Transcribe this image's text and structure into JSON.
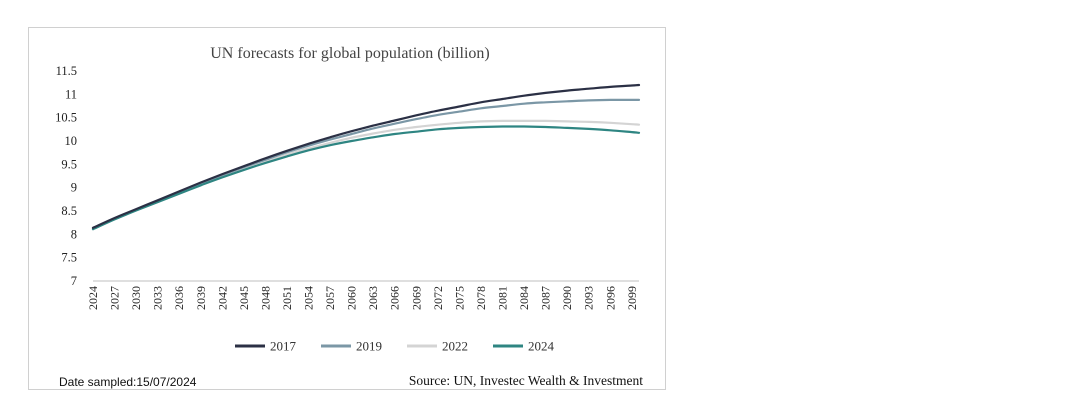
{
  "chart_data": {
    "type": "line",
    "title": "UN  forecasts for global population (billion)",
    "xlabel": "",
    "ylabel": "",
    "ylim": [
      7,
      11.5
    ],
    "yticks": [
      "11.5",
      "11",
      "10.5",
      "10",
      "9.5",
      "9",
      "8.5",
      "8",
      "7.5",
      "7"
    ],
    "x": [
      2024,
      2027,
      2030,
      2033,
      2036,
      2039,
      2042,
      2045,
      2048,
      2051,
      2054,
      2057,
      2060,
      2063,
      2066,
      2069,
      2072,
      2075,
      2078,
      2081,
      2084,
      2087,
      2090,
      2093,
      2096,
      2099
    ],
    "xlim": [
      2024,
      2100
    ],
    "legend_position": "bottom",
    "series": [
      {
        "name": "2017",
        "color": "#2b3045",
        "values": [
          8.14,
          8.35,
          8.54,
          8.73,
          8.92,
          9.11,
          9.29,
          9.46,
          9.63,
          9.79,
          9.94,
          10.08,
          10.21,
          10.33,
          10.44,
          10.55,
          10.65,
          10.74,
          10.83,
          10.9,
          10.97,
          11.03,
          11.08,
          11.12,
          11.16,
          11.19
        ]
      },
      {
        "name": "2019",
        "color": "#7b97a6",
        "values": [
          8.13,
          8.34,
          8.53,
          8.72,
          8.91,
          9.09,
          9.27,
          9.44,
          9.6,
          9.76,
          9.9,
          10.03,
          10.15,
          10.27,
          10.37,
          10.47,
          10.56,
          10.63,
          10.7,
          10.75,
          10.8,
          10.83,
          10.85,
          10.87,
          10.88,
          10.88
        ]
      },
      {
        "name": "2022",
        "color": "#d4d4d4",
        "values": [
          8.12,
          8.33,
          8.52,
          8.71,
          8.89,
          9.07,
          9.25,
          9.41,
          9.57,
          9.71,
          9.84,
          9.96,
          10.07,
          10.16,
          10.24,
          10.3,
          10.35,
          10.39,
          10.42,
          10.43,
          10.43,
          10.43,
          10.42,
          10.41,
          10.39,
          10.36
        ]
      },
      {
        "name": "2024",
        "color": "#2e8582",
        "values": [
          8.11,
          8.32,
          8.51,
          8.69,
          8.87,
          9.05,
          9.22,
          9.38,
          9.53,
          9.67,
          9.8,
          9.91,
          10.0,
          10.08,
          10.15,
          10.2,
          10.25,
          10.28,
          10.3,
          10.31,
          10.31,
          10.3,
          10.28,
          10.26,
          10.23,
          10.19
        ]
      }
    ]
  },
  "footer": {
    "date_sampled": "Date sampled:15/07/2024",
    "source": "Source: UN, Investec Wealth & Investment"
  }
}
